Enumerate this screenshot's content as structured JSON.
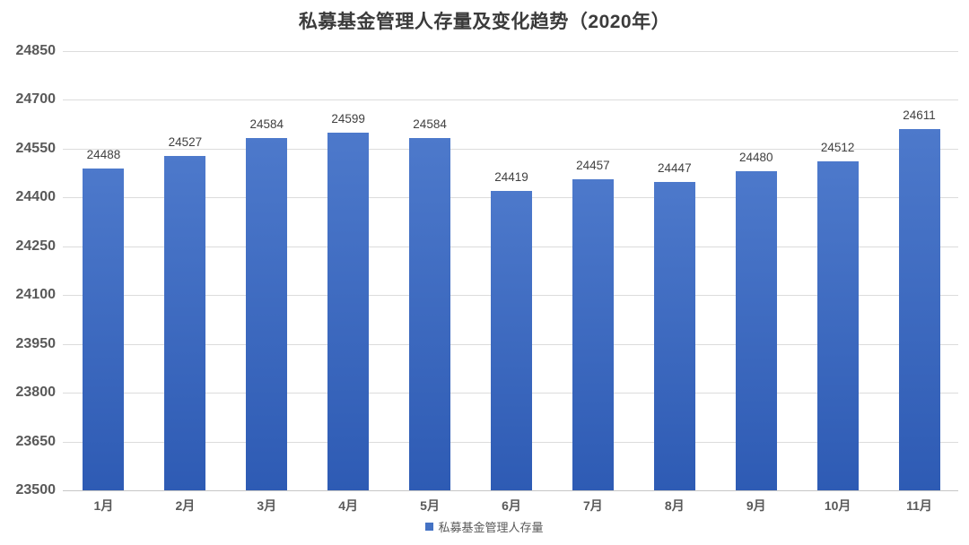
{
  "title": "私募基金管理人存量及变化趋势（2020年）",
  "legend": {
    "label": "私募基金管理人存量",
    "marker_color": "#4472C4"
  },
  "colors": {
    "bar_top": "#4d79cb",
    "bar_bottom": "#2e5bb4",
    "grid": "#dcdcdc",
    "axis_line": "#c6c6c6",
    "title_text": "#3b3b3b",
    "tick_text": "#595959",
    "value_text": "#404040"
  },
  "chart_data": {
    "type": "bar",
    "title": "私募基金管理人存量及变化趋势（2020年）",
    "categories": [
      "1月",
      "2月",
      "3月",
      "4月",
      "5月",
      "6月",
      "7月",
      "8月",
      "9月",
      "10月",
      "11月"
    ],
    "series": [
      {
        "name": "私募基金管理人存量",
        "values": [
          24488,
          24527,
          24584,
          24599,
          24584,
          24419,
          24457,
          24447,
          24480,
          24512,
          24611
        ]
      }
    ],
    "xlabel": "",
    "ylabel": "",
    "ylim": [
      23500,
      24850
    ],
    "y_ticks": [
      23500,
      23650,
      23800,
      23950,
      24100,
      24250,
      24400,
      24550,
      24700,
      24850
    ],
    "grid": true,
    "data_labels": true,
    "legend_position": "bottom"
  }
}
